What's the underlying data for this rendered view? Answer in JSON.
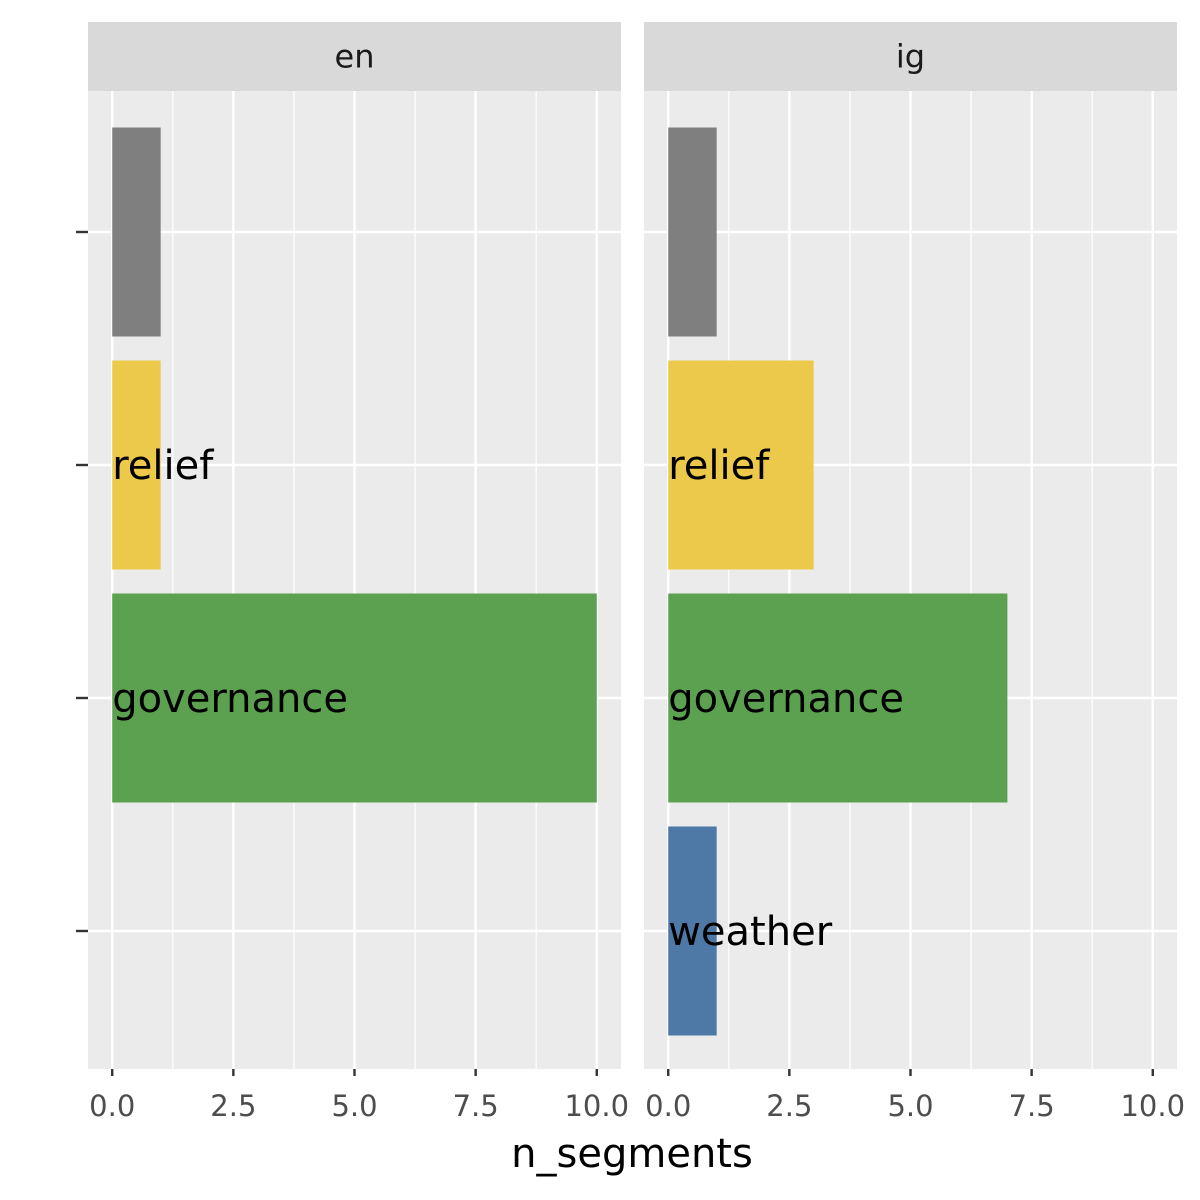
{
  "chart_data": {
    "type": "bar",
    "orientation": "horizontal",
    "xlabel": "n_segments",
    "ylabel": "",
    "xlim": [
      -0.5,
      10.5
    ],
    "x_ticks": [
      0.0,
      2.5,
      5.0,
      7.5,
      10.0
    ],
    "x_tick_labels": [
      "0.0",
      "2.5",
      "5.0",
      "7.5",
      "10.0"
    ],
    "grid": true,
    "legend": "none",
    "categories": [
      "",
      "relief",
      "governance",
      "weather"
    ],
    "category_colors": {
      "": "#7f7f7f",
      "relief": "#ecc94b",
      "governance": "#5ba150",
      "weather": "#4e79a7"
    },
    "panels": [
      {
        "name": "en",
        "bars": [
          {
            "category": "",
            "value": 1
          },
          {
            "category": "relief",
            "value": 1
          },
          {
            "category": "governance",
            "value": 10
          }
        ]
      },
      {
        "name": "ig",
        "bars": [
          {
            "category": "",
            "value": 1
          },
          {
            "category": "relief",
            "value": 3
          },
          {
            "category": "governance",
            "value": 7
          },
          {
            "category": "weather",
            "value": 1
          }
        ]
      }
    ]
  },
  "colors": {
    "panel_background": "#ebebeb",
    "strip_background": "#d9d9d9",
    "grid_line": "#ffffff"
  }
}
